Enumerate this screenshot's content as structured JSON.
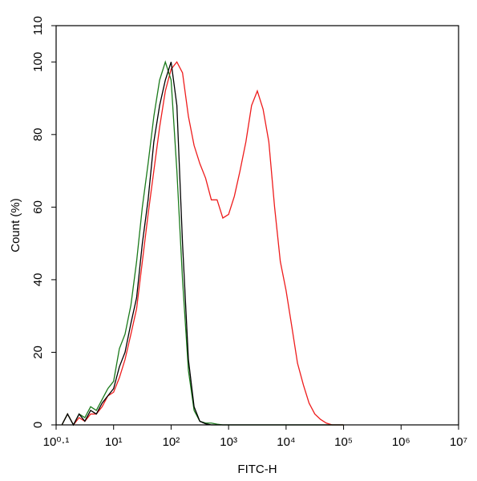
{
  "chart_data": {
    "type": "line",
    "xlabel": "FITC-H",
    "ylabel": "Count  (%)",
    "xscale": "log",
    "xlim": [
      1,
      10000000
    ],
    "xticks": [
      {
        "value": 1,
        "label": "10⁰·¹"
      },
      {
        "value": 10,
        "label": "10¹"
      },
      {
        "value": 100,
        "label": "10²"
      },
      {
        "value": 1000,
        "label": "10³"
      },
      {
        "value": 10000,
        "label": "10⁴"
      },
      {
        "value": 100000,
        "label": "10⁵"
      },
      {
        "value": 1000000,
        "label": "10⁶"
      },
      {
        "value": 10000000,
        "label": "10⁷"
      }
    ],
    "ylim": [
      0,
      110
    ],
    "yticks": [
      0,
      20,
      40,
      60,
      80,
      100,
      110
    ],
    "x": [
      1.26,
      1.58,
      2.0,
      2.51,
      3.16,
      3.98,
      5.01,
      6.31,
      7.94,
      10,
      12.6,
      15.8,
      20,
      25.1,
      31.6,
      39.8,
      50.1,
      63.1,
      79.4,
      100,
      126,
      158,
      200,
      251,
      316,
      398,
      501,
      631,
      794,
      1000,
      1260,
      1580,
      2000,
      2510,
      3160,
      3980,
      5010,
      6310,
      7940,
      10000,
      12600,
      15800,
      20000,
      25100,
      31600,
      39800,
      50100,
      63100,
      79400,
      100000
    ],
    "series": [
      {
        "color": "#ee1c1c",
        "values": [
          0,
          3,
          0,
          2,
          1,
          3,
          3,
          5,
          8,
          9,
          13,
          18,
          25,
          32,
          45,
          58,
          70,
          82,
          92,
          98,
          100,
          97,
          85,
          77,
          72,
          68,
          62,
          62,
          57,
          58,
          63,
          70,
          78,
          88,
          92,
          87,
          78,
          60,
          45,
          37,
          27,
          17,
          11,
          6,
          3,
          1.5,
          0.5,
          0,
          0,
          0
        ]
      },
      {
        "color": "#1a7a1a",
        "values": [
          0,
          3,
          0,
          3,
          2,
          5,
          4,
          7,
          10,
          12,
          21,
          25,
          33,
          45,
          60,
          72,
          85,
          95,
          100,
          95,
          70,
          40,
          15,
          4,
          1,
          0.5,
          0.5,
          0.2,
          0,
          0,
          0,
          0,
          0,
          0,
          0,
          0,
          0,
          0,
          0,
          0,
          0,
          0,
          0,
          0,
          0,
          0,
          0,
          0,
          0,
          0
        ]
      },
      {
        "color": "#000000",
        "values": [
          0,
          3,
          0,
          3,
          1,
          4,
          3,
          6,
          8,
          10,
          16,
          20,
          28,
          35,
          50,
          62,
          78,
          88,
          95,
          100,
          88,
          50,
          18,
          5,
          1,
          0.3,
          0,
          0,
          0,
          0,
          0,
          0,
          0,
          0,
          0,
          0,
          0,
          0,
          0,
          0,
          0,
          0,
          0,
          0,
          0,
          0,
          0,
          0,
          0,
          0
        ]
      }
    ]
  }
}
